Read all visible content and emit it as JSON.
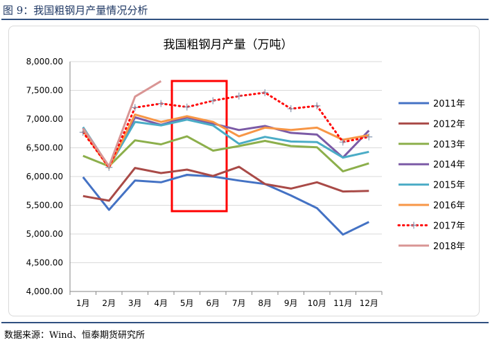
{
  "figure": {
    "caption": "图 9：我国粗钢月产量情况分析",
    "source": "数据来源：Wind、恒泰期货研究所"
  },
  "chart_data": {
    "type": "line",
    "title": "我国粗钢月产量（万吨）",
    "xlabel": "",
    "ylabel": "",
    "ylim": [
      4000,
      8000
    ],
    "yticks": [
      "8,000.00",
      "7,500.00",
      "7,000.00",
      "6,500.00",
      "6,000.00",
      "5,500.00",
      "5,000.00",
      "4,500.00",
      "4,000.00"
    ],
    "ytick_values": [
      8000,
      7500,
      7000,
      6500,
      6000,
      5500,
      5000,
      4500,
      4000
    ],
    "categories": [
      "1月",
      "2月",
      "3月",
      "4月",
      "5月",
      "6月",
      "7月",
      "8月",
      "9月",
      "10月",
      "11月",
      "12月"
    ],
    "grid": true,
    "legend_position": "right",
    "highlight": {
      "from_category": "5月",
      "to_category": "6月",
      "color": "#ff0000"
    },
    "series": [
      {
        "name": "2011年",
        "color": "#4472c4",
        "style": "solid",
        "values": [
          5990,
          5420,
          5930,
          5900,
          6030,
          6000,
          5930,
          5870,
          5670,
          5450,
          4990,
          5210
        ]
      },
      {
        "name": "2012年",
        "color": "#a94a47",
        "style": "solid",
        "values": [
          5660,
          5580,
          6150,
          6060,
          6120,
          6010,
          6170,
          5870,
          5790,
          5900,
          5740,
          5750
        ]
      },
      {
        "name": "2013年",
        "color": "#8caf4b",
        "style": "solid",
        "values": [
          6360,
          6180,
          6630,
          6560,
          6700,
          6450,
          6530,
          6620,
          6530,
          6510,
          6090,
          6230
        ]
      },
      {
        "name": "2014年",
        "color": "#7b5aa6",
        "style": "solid",
        "values": [
          6850,
          6170,
          7030,
          6900,
          7030,
          6920,
          6810,
          6880,
          6760,
          6730,
          6330,
          6800
        ]
      },
      {
        "name": "2015年",
        "color": "#4bacc6",
        "style": "solid",
        "values": [
          6860,
          6170,
          6950,
          6890,
          6990,
          6890,
          6570,
          6690,
          6610,
          6600,
          6330,
          6430
        ]
      },
      {
        "name": "2016年",
        "color": "#f79646",
        "style": "solid",
        "values": [
          6800,
          6150,
          7080,
          6950,
          7050,
          6950,
          6700,
          6850,
          6810,
          6850,
          6640,
          6720
        ]
      },
      {
        "name": "2017年",
        "color": "#ff0000",
        "style": "dotted",
        "values": [
          6770,
          6160,
          7200,
          7270,
          7210,
          7320,
          7400,
          7460,
          7180,
          7230,
          6600,
          6690
        ]
      },
      {
        "name": "2018年",
        "color": "#d99594",
        "style": "solid",
        "values": [
          6840,
          6180,
          7390,
          7660,
          null,
          null,
          null,
          null,
          null,
          null,
          null,
          null
        ]
      }
    ]
  }
}
